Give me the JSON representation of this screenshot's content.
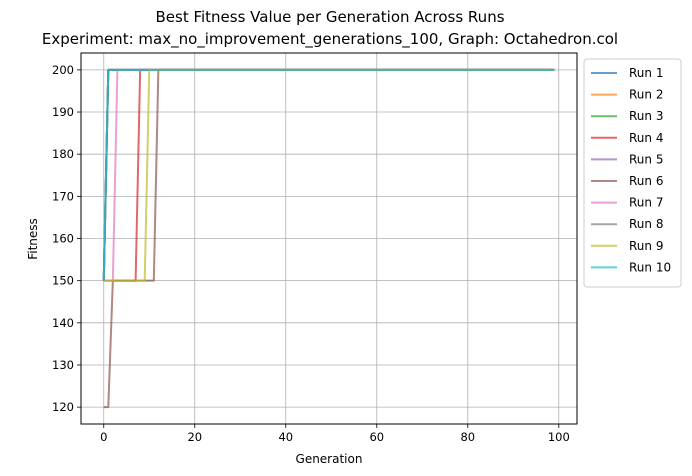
{
  "chart_data": {
    "type": "line",
    "title": "Best Fitness Value per Generation Across Runs",
    "subtitle": "Experiment: max_no_improvement_generations_100, Graph: Octahedron.col",
    "xlabel": "Generation",
    "ylabel": "Fitness",
    "xlim": [
      -5,
      104
    ],
    "ylim": [
      116,
      204
    ],
    "xticks": [
      0,
      20,
      40,
      60,
      80,
      100
    ],
    "yticks": [
      120,
      130,
      140,
      150,
      160,
      170,
      180,
      190,
      200
    ],
    "grid": true,
    "legend_position": "outside-top-right",
    "series": [
      {
        "name": "Run 1",
        "color": "#1f77b4",
        "points": [
          [
            0,
            150
          ],
          [
            1,
            200
          ],
          [
            99,
            200
          ]
        ]
      },
      {
        "name": "Run 2",
        "color": "#ff7f0e",
        "points": [
          [
            0,
            150
          ],
          [
            1,
            200
          ],
          [
            99,
            200
          ]
        ]
      },
      {
        "name": "Run 3",
        "color": "#2ca02c",
        "points": [
          [
            0,
            150
          ],
          [
            1,
            200
          ],
          [
            99,
            200
          ]
        ]
      },
      {
        "name": "Run 4",
        "color": "#d62728",
        "points": [
          [
            0,
            150
          ],
          [
            7,
            150
          ],
          [
            8,
            200
          ],
          [
            99,
            200
          ]
        ]
      },
      {
        "name": "Run 5",
        "color": "#9467bd",
        "points": [
          [
            0,
            150
          ],
          [
            1,
            200
          ],
          [
            99,
            200
          ]
        ]
      },
      {
        "name": "Run 6",
        "color": "#8c564b",
        "points": [
          [
            0,
            120
          ],
          [
            1,
            120
          ],
          [
            2,
            150
          ],
          [
            11,
            150
          ],
          [
            12,
            200
          ],
          [
            99,
            200
          ]
        ]
      },
      {
        "name": "Run 7",
        "color": "#e377c2",
        "points": [
          [
            0,
            150
          ],
          [
            2,
            150
          ],
          [
            3,
            200
          ],
          [
            99,
            200
          ]
        ]
      },
      {
        "name": "Run 8",
        "color": "#7f7f7f",
        "points": [
          [
            0,
            150
          ],
          [
            1,
            200
          ],
          [
            99,
            200
          ]
        ]
      },
      {
        "name": "Run 9",
        "color": "#bcbd22",
        "points": [
          [
            0,
            150
          ],
          [
            9,
            150
          ],
          [
            10,
            200
          ],
          [
            99,
            200
          ]
        ]
      },
      {
        "name": "Run 10",
        "color": "#17becf",
        "points": [
          [
            0,
            150
          ],
          [
            1,
            200
          ],
          [
            99,
            200
          ]
        ]
      }
    ]
  }
}
